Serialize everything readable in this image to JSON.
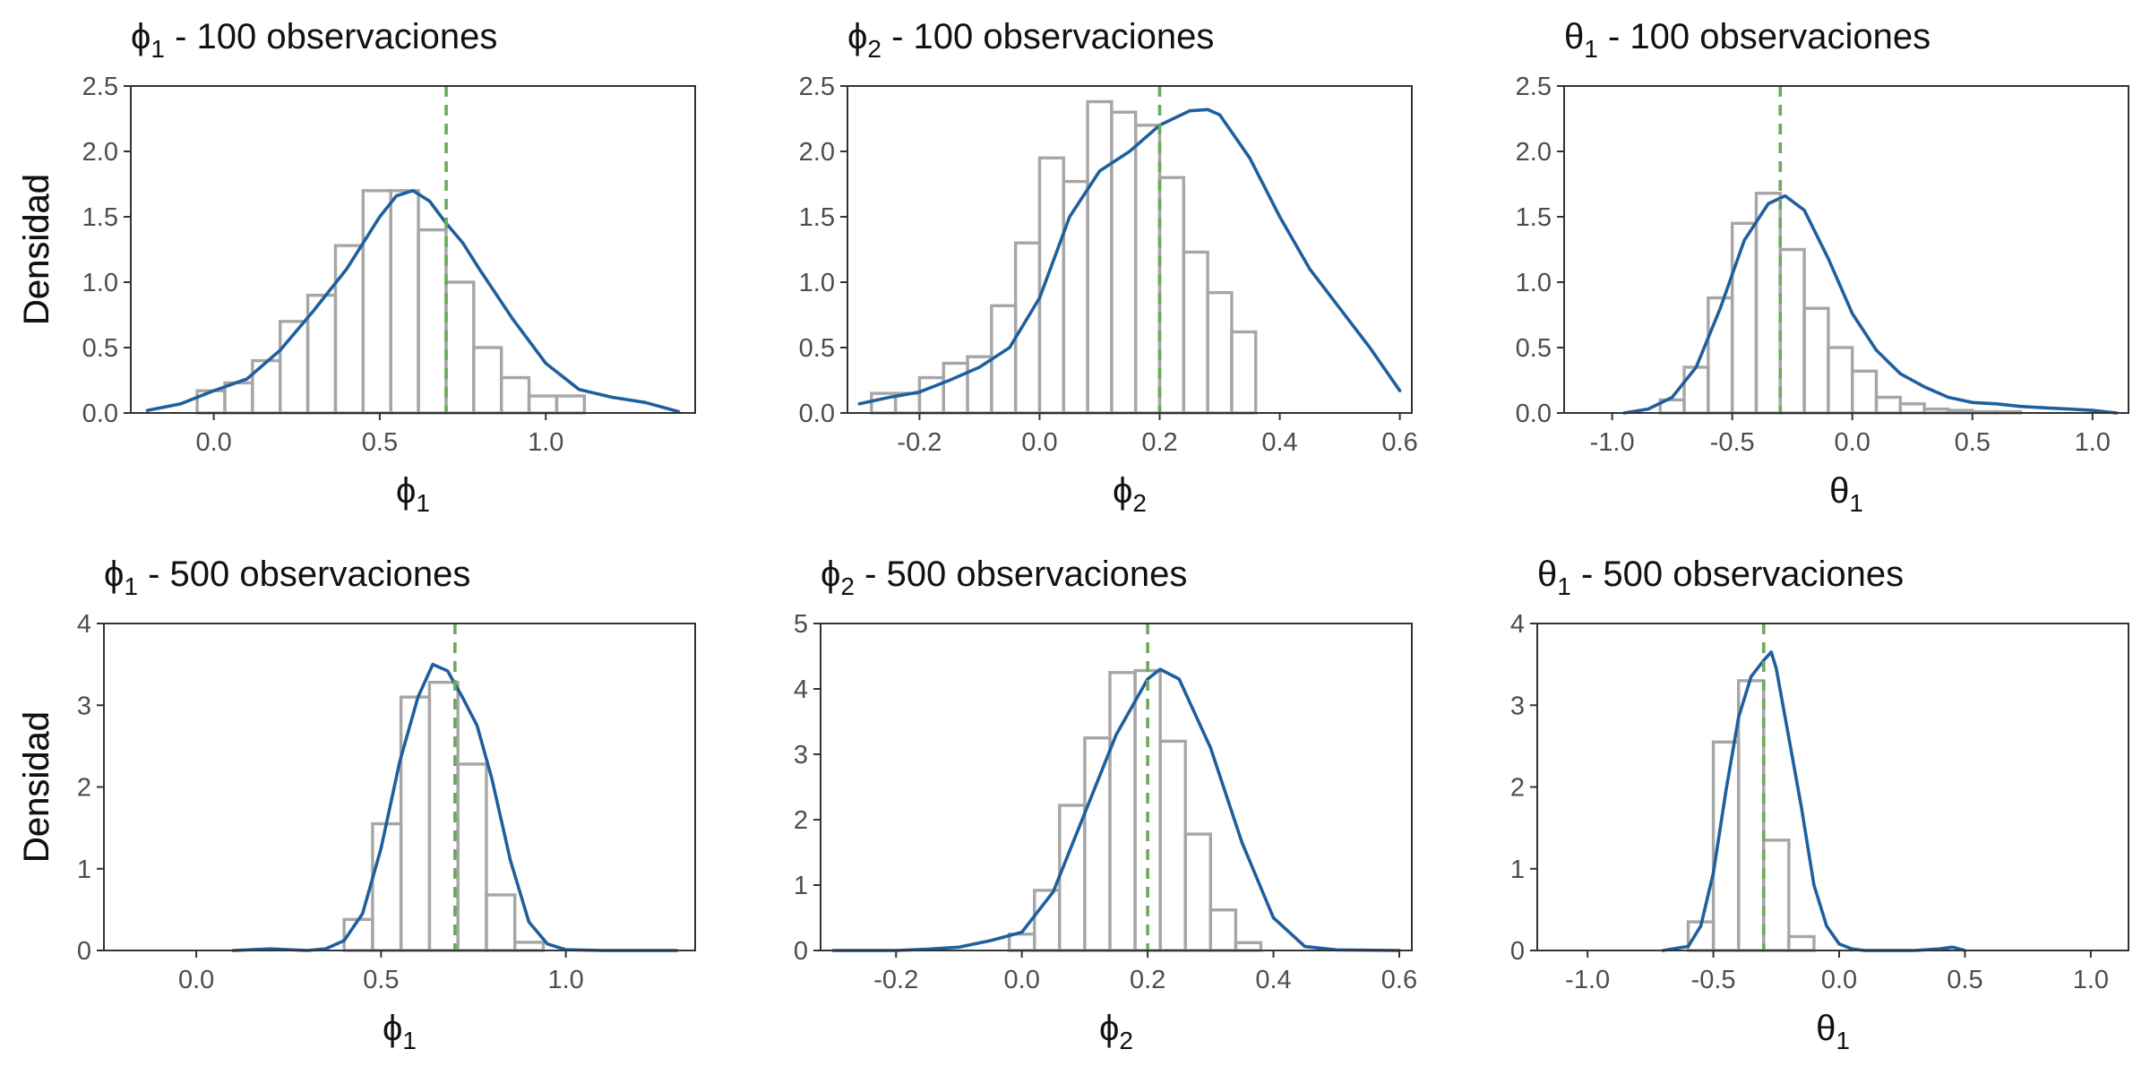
{
  "figure": {
    "ylabel": "Densidad"
  },
  "colors": {
    "histogram_outline": "#a6a6a6",
    "density_line": "#1f5f9e",
    "true_value_line": "#6aaa5a",
    "axis_text": "#4d4d4d",
    "panel_border": "#333333"
  },
  "chart_data": [
    {
      "type": "bar",
      "title": {
        "symbol": "ϕ",
        "subscript": "1",
        "suffix": " - 100 observaciones"
      },
      "xlabel": {
        "symbol": "ϕ",
        "subscript": "1"
      },
      "ylabel": "Densidad",
      "xlim": [
        -0.25,
        1.45
      ],
      "ylim": [
        0,
        2.5
      ],
      "xticks": [
        "0.0",
        "0.5",
        "1.0"
      ],
      "yticks": [
        "0.0",
        "0.5",
        "1.0",
        "1.5",
        "2.0",
        "2.5"
      ],
      "true_value": 0.7,
      "bins": {
        "start": -0.05,
        "width": 0.0833,
        "values": [
          0.17,
          0.23,
          0.4,
          0.7,
          0.9,
          1.28,
          1.7,
          1.7,
          1.4,
          1.0,
          0.5,
          0.27,
          0.13,
          0.13
        ]
      },
      "density": {
        "x": [
          -0.2,
          -0.1,
          0.0,
          0.1,
          0.2,
          0.3,
          0.4,
          0.5,
          0.55,
          0.6,
          0.65,
          0.7,
          0.75,
          0.8,
          0.9,
          1.0,
          1.1,
          1.2,
          1.3,
          1.4
        ],
        "y": [
          0.02,
          0.07,
          0.17,
          0.26,
          0.48,
          0.78,
          1.1,
          1.5,
          1.66,
          1.7,
          1.62,
          1.45,
          1.3,
          1.1,
          0.72,
          0.38,
          0.18,
          0.12,
          0.08,
          0.01
        ]
      }
    },
    {
      "type": "bar",
      "title": {
        "symbol": "ϕ",
        "subscript": "2",
        "suffix": " - 100 observaciones"
      },
      "xlabel": {
        "symbol": "ϕ",
        "subscript": "2"
      },
      "ylabel": "Densidad",
      "xlim": [
        -0.32,
        0.62
      ],
      "ylim": [
        0,
        2.5
      ],
      "xticks": [
        "-0.2",
        "0.0",
        "0.2",
        "0.4",
        "0.6"
      ],
      "yticks": [
        "0.0",
        "0.5",
        "1.0",
        "1.5",
        "2.0",
        "2.5"
      ],
      "true_value": 0.2,
      "bins": {
        "start": -0.28,
        "width": 0.04,
        "values": [
          0.15,
          0.15,
          0.27,
          0.38,
          0.43,
          0.82,
          1.3,
          1.95,
          1.77,
          2.38,
          2.3,
          2.2,
          1.8,
          1.23,
          0.92,
          0.62
        ]
      },
      "density": {
        "x": [
          -0.3,
          -0.25,
          -0.2,
          -0.15,
          -0.1,
          -0.05,
          0.0,
          0.05,
          0.1,
          0.15,
          0.2,
          0.25,
          0.28,
          0.3,
          0.35,
          0.4,
          0.45,
          0.5,
          0.55,
          0.6
        ],
        "y": [
          0.07,
          0.12,
          0.16,
          0.25,
          0.35,
          0.5,
          0.88,
          1.5,
          1.85,
          2.0,
          2.2,
          2.31,
          2.32,
          2.28,
          1.95,
          1.5,
          1.1,
          0.8,
          0.5,
          0.17
        ]
      }
    },
    {
      "type": "bar",
      "title": {
        "symbol": "θ",
        "subscript": "1",
        "suffix": " - 100 observaciones"
      },
      "xlabel": {
        "symbol": "θ",
        "subscript": "1"
      },
      "ylabel": "Densidad",
      "xlim": [
        -1.2,
        1.15
      ],
      "ylim": [
        0,
        2.5
      ],
      "xticks": [
        "-1.0",
        "-0.5",
        "0.0",
        "0.5",
        "1.0"
      ],
      "yticks": [
        "0.0",
        "0.5",
        "1.0",
        "1.5",
        "2.0",
        "2.5"
      ],
      "true_value": -0.3,
      "bins": {
        "start": -0.8,
        "width": 0.1,
        "values": [
          0.1,
          0.35,
          0.88,
          1.45,
          1.68,
          1.25,
          0.8,
          0.5,
          0.32,
          0.12,
          0.07,
          0.03,
          0.02,
          0.01,
          0.01
        ]
      },
      "density": {
        "x": [
          -0.95,
          -0.85,
          -0.75,
          -0.65,
          -0.55,
          -0.45,
          -0.35,
          -0.28,
          -0.2,
          -0.1,
          0.0,
          0.1,
          0.2,
          0.3,
          0.4,
          0.5,
          0.6,
          0.7,
          0.8,
          0.9,
          1.0,
          1.1
        ],
        "y": [
          0.0,
          0.03,
          0.12,
          0.35,
          0.8,
          1.32,
          1.6,
          1.66,
          1.55,
          1.18,
          0.76,
          0.48,
          0.3,
          0.2,
          0.12,
          0.08,
          0.07,
          0.05,
          0.04,
          0.03,
          0.02,
          0.0
        ]
      }
    },
    {
      "type": "bar",
      "title": {
        "symbol": "ϕ",
        "subscript": "1",
        "suffix": " - 500 observaciones"
      },
      "xlabel": {
        "symbol": "ϕ",
        "subscript": "1"
      },
      "ylabel": "Densidad",
      "xlim": [
        -0.25,
        1.35
      ],
      "ylim": [
        0,
        4
      ],
      "xticks": [
        "0.0",
        "0.5",
        "1.0"
      ],
      "yticks": [
        "0",
        "1",
        "2",
        "3",
        "4"
      ],
      "true_value": 0.7,
      "bins": {
        "start": 0.4,
        "width": 0.077,
        "values": [
          0.38,
          1.55,
          3.1,
          3.28,
          2.28,
          0.68,
          0.1
        ]
      },
      "density": {
        "x": [
          0.1,
          0.2,
          0.3,
          0.35,
          0.4,
          0.45,
          0.5,
          0.55,
          0.6,
          0.64,
          0.68,
          0.72,
          0.76,
          0.8,
          0.85,
          0.9,
          0.95,
          1.0,
          1.1,
          1.2,
          1.3
        ],
        "y": [
          0.0,
          0.02,
          0.0,
          0.02,
          0.12,
          0.45,
          1.25,
          2.3,
          3.1,
          3.5,
          3.42,
          3.1,
          2.75,
          2.1,
          1.1,
          0.35,
          0.08,
          0.01,
          0.0,
          0.0,
          0.0
        ]
      }
    },
    {
      "type": "bar",
      "title": {
        "symbol": "ϕ",
        "subscript": "2",
        "suffix": " - 500 observaciones"
      },
      "xlabel": {
        "symbol": "ϕ",
        "subscript": "2"
      },
      "ylabel": "Densidad",
      "xlim": [
        -0.32,
        0.62
      ],
      "ylim": [
        0,
        5
      ],
      "xticks": [
        "-0.2",
        "0.0",
        "0.2",
        "0.4",
        "0.6"
      ],
      "yticks": [
        "0",
        "1",
        "2",
        "3",
        "4",
        "5"
      ],
      "true_value": 0.2,
      "bins": {
        "start": -0.02,
        "width": 0.04,
        "values": [
          0.25,
          0.92,
          2.22,
          3.25,
          4.25,
          4.28,
          3.2,
          1.78,
          0.62,
          0.12
        ]
      },
      "density": {
        "x": [
          -0.3,
          -0.2,
          -0.15,
          -0.1,
          -0.05,
          0.0,
          0.05,
          0.1,
          0.15,
          0.2,
          0.22,
          0.25,
          0.3,
          0.35,
          0.4,
          0.45,
          0.5,
          0.6
        ],
        "y": [
          0.0,
          0.0,
          0.02,
          0.05,
          0.15,
          0.28,
          0.9,
          2.1,
          3.3,
          4.15,
          4.3,
          4.15,
          3.1,
          1.65,
          0.5,
          0.06,
          0.01,
          0.0
        ]
      }
    },
    {
      "type": "bar",
      "title": {
        "symbol": "θ",
        "subscript": "1",
        "suffix": " - 500 observaciones"
      },
      "xlabel": {
        "symbol": "θ",
        "subscript": "1"
      },
      "ylabel": "Densidad",
      "xlim": [
        -1.2,
        1.15
      ],
      "ylim": [
        0,
        4
      ],
      "xticks": [
        "-1.0",
        "-0.5",
        "0.0",
        "0.5",
        "1.0"
      ],
      "yticks": [
        "0",
        "1",
        "2",
        "3",
        "4"
      ],
      "true_value": -0.3,
      "bins": {
        "start": -0.6,
        "width": 0.1,
        "values": [
          0.35,
          2.55,
          3.3,
          1.35,
          0.17
        ]
      },
      "density": {
        "x": [
          -0.7,
          -0.6,
          -0.55,
          -0.5,
          -0.45,
          -0.4,
          -0.35,
          -0.3,
          -0.27,
          -0.25,
          -0.2,
          -0.15,
          -0.1,
          -0.05,
          0.0,
          0.05,
          0.1,
          0.3,
          0.4,
          0.45,
          0.5
        ],
        "y": [
          0.0,
          0.05,
          0.3,
          0.95,
          1.95,
          2.85,
          3.35,
          3.55,
          3.65,
          3.45,
          2.6,
          1.75,
          0.8,
          0.3,
          0.08,
          0.02,
          0.0,
          0.0,
          0.02,
          0.04,
          0.0
        ]
      }
    }
  ]
}
